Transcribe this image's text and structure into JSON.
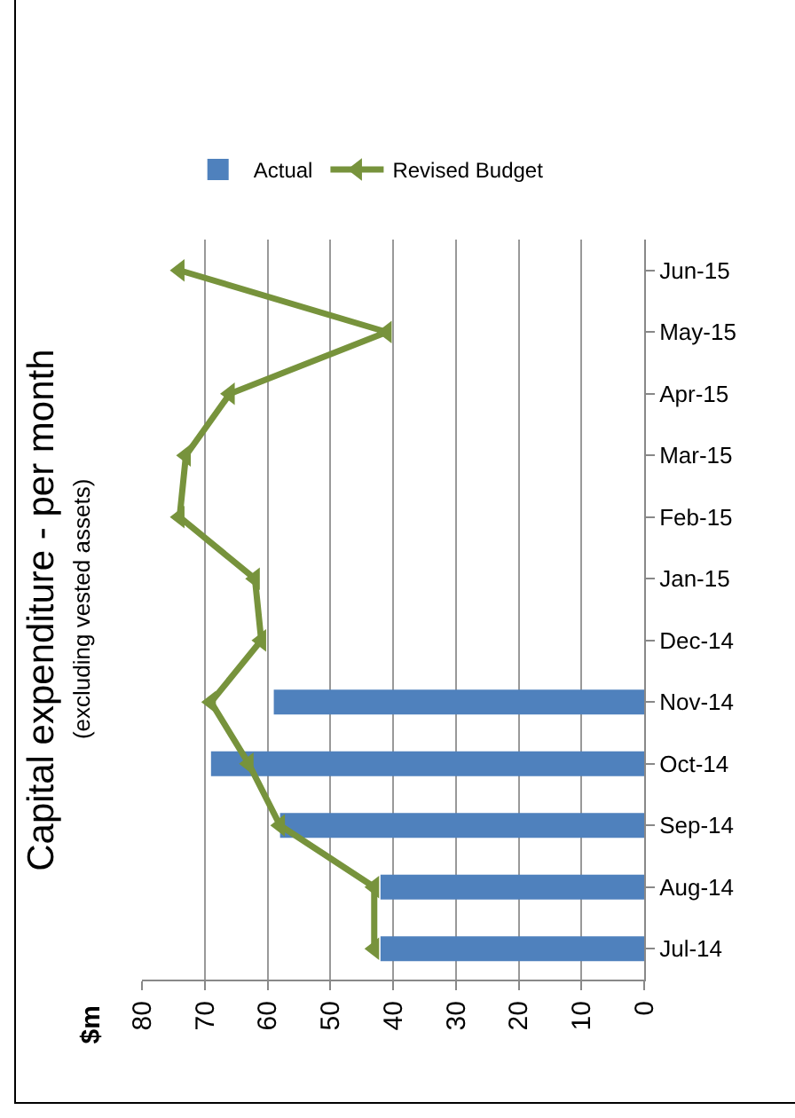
{
  "chart_data": {
    "type": "bar",
    "orientation": "horizontal",
    "title": "Capital expenditure - per month",
    "subtitle": "(excluding vested assets)",
    "annotations": [
      "$m"
    ],
    "categories": [
      "Jun-15",
      "May-15",
      "Apr-15",
      "Mar-15",
      "Feb-15",
      "Jan-15",
      "Dec-14",
      "Nov-14",
      "Oct-14",
      "Sep-14",
      "Aug-14",
      "Jul-14"
    ],
    "series": [
      {
        "name": "Actual",
        "color": "#4f81bd",
        "values": [
          null,
          null,
          null,
          null,
          null,
          null,
          null,
          59,
          69,
          58,
          42,
          42
        ]
      },
      {
        "name": "Revised Budget",
        "type": "line",
        "color": "#77933c",
        "marker": "triangle",
        "values": [
          74,
          41,
          66,
          73,
          74,
          62,
          61,
          69,
          63,
          58,
          43,
          43
        ]
      }
    ],
    "xlim": [
      80,
      0
    ],
    "xticks": [
      80,
      70,
      60,
      50,
      40,
      30,
      20,
      10,
      0
    ],
    "grid": "x",
    "legend": "top"
  }
}
